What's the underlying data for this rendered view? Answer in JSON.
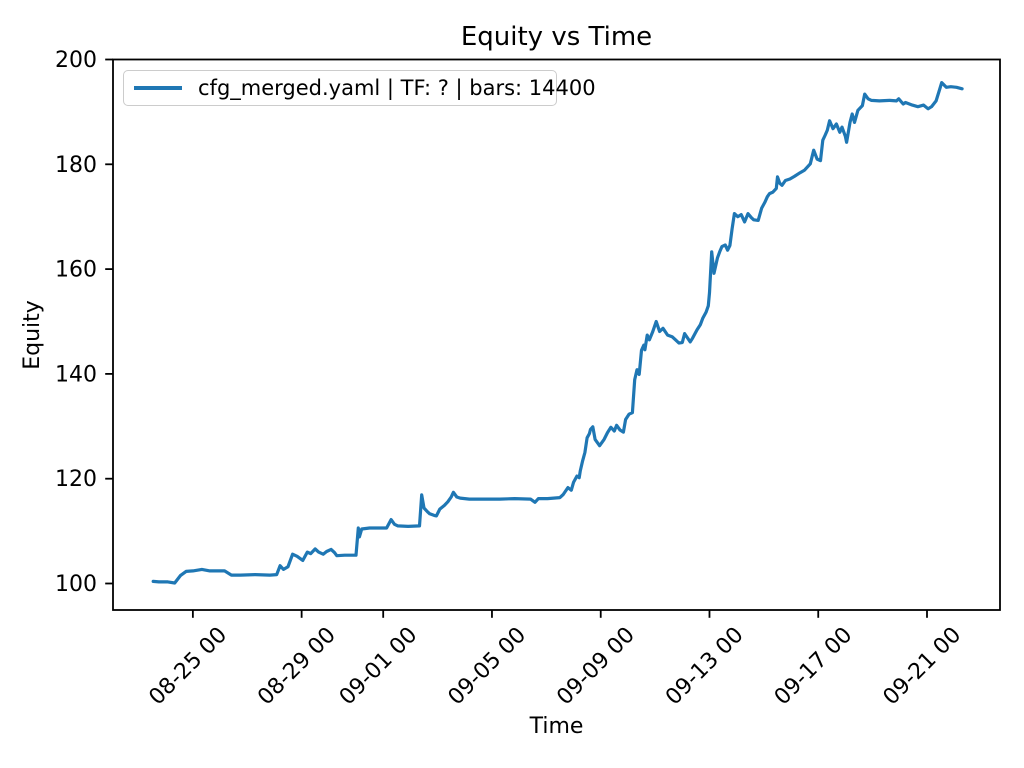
{
  "chart_data": {
    "type": "line",
    "title": "Equity vs Time",
    "xlabel": "Time",
    "ylabel": "Equity",
    "grid": false,
    "y_ticks": [
      100,
      120,
      140,
      160,
      180,
      200
    ],
    "y_tick_labels": [
      "100",
      "120",
      "140",
      "160",
      "180",
      "200"
    ],
    "x_tick_labels": [
      "08-25 00",
      "08-29 00",
      "09-01 00",
      "09-05 00",
      "09-09 00",
      "09-13 00",
      "09-17 00",
      "09-21 00"
    ],
    "ylim": [
      94.9,
      200
    ],
    "xlim": [
      "08-22 02",
      "09-23 17"
    ],
    "legend": {
      "position": "upper-left",
      "entries": [
        {
          "label": "cfg_merged.yaml | TF: ? | bars: 14400",
          "color": "#1f77b4"
        }
      ]
    },
    "series": [
      {
        "name": "cfg_merged.yaml | TF: ? | bars: 14400",
        "color": "#1f77b4",
        "points": [
          [
            "08-23 13",
            100.4
          ],
          [
            "08-23 18",
            100.3
          ],
          [
            "08-24 02",
            100.3
          ],
          [
            "08-24 08",
            100.1
          ],
          [
            "08-24 13",
            101.5
          ],
          [
            "08-24 18",
            102.3
          ],
          [
            "08-25 00",
            102.4
          ],
          [
            "08-25 08",
            102.7
          ],
          [
            "08-25 15",
            102.4
          ],
          [
            "08-26 04",
            102.4
          ],
          [
            "08-26 10",
            101.6
          ],
          [
            "08-26 18",
            101.6
          ],
          [
            "08-27 07",
            101.7
          ],
          [
            "08-27 20",
            101.6
          ],
          [
            "08-28 02",
            101.7
          ],
          [
            "08-28 05",
            103.4
          ],
          [
            "08-28 08",
            102.7
          ],
          [
            "08-28 12",
            103.2
          ],
          [
            "08-28 16",
            105.6
          ],
          [
            "08-28 20",
            105.2
          ],
          [
            "08-29 01",
            104.4
          ],
          [
            "08-29 05",
            106.0
          ],
          [
            "08-29 08",
            105.7
          ],
          [
            "08-29 12",
            106.6
          ],
          [
            "08-29 15",
            106.0
          ],
          [
            "08-29 19",
            105.6
          ],
          [
            "08-29 22",
            106.1
          ],
          [
            "08-30 02",
            106.5
          ],
          [
            "08-30 05",
            105.9
          ],
          [
            "08-30 07",
            105.3
          ],
          [
            "08-30 14",
            105.4
          ],
          [
            "08-31 00",
            105.4
          ],
          [
            "08-31 02",
            110.6
          ],
          [
            "08-31 03",
            108.9
          ],
          [
            "08-31 05",
            110.4
          ],
          [
            "08-31 12",
            110.6
          ],
          [
            "08-31 21",
            110.6
          ],
          [
            "09-01 03",
            110.6
          ],
          [
            "09-01 07",
            112.2
          ],
          [
            "09-01 10",
            111.3
          ],
          [
            "09-01 13",
            111.0
          ],
          [
            "09-01 22",
            110.9
          ],
          [
            "09-02 08",
            111.0
          ],
          [
            "09-02 10",
            116.9
          ],
          [
            "09-02 12",
            114.4
          ],
          [
            "09-02 15",
            113.7
          ],
          [
            "09-02 17",
            113.3
          ],
          [
            "09-02 21",
            113.0
          ],
          [
            "09-02 23",
            112.9
          ],
          [
            "09-03 02",
            114.2
          ],
          [
            "09-03 06",
            114.9
          ],
          [
            "09-03 09",
            115.6
          ],
          [
            "09-03 12",
            116.5
          ],
          [
            "09-03 14",
            117.4
          ],
          [
            "09-03 17",
            116.5
          ],
          [
            "09-03 20",
            116.3
          ],
          [
            "09-04 04",
            116.1
          ],
          [
            "09-04 18",
            116.1
          ],
          [
            "09-05 07",
            116.1
          ],
          [
            "09-05 20",
            116.2
          ],
          [
            "09-06 10",
            116.1
          ],
          [
            "09-06 14",
            115.5
          ],
          [
            "09-06 17",
            116.2
          ],
          [
            "09-07 01",
            116.2
          ],
          [
            "09-07 12",
            116.4
          ],
          [
            "09-07 15",
            117.0
          ],
          [
            "09-07 19",
            118.3
          ],
          [
            "09-07 22",
            117.8
          ],
          [
            "09-08 00",
            119.3
          ],
          [
            "09-08 03",
            120.5
          ],
          [
            "09-08 05",
            120.2
          ],
          [
            "09-08 06",
            121.5
          ],
          [
            "09-08 08",
            123.4
          ],
          [
            "09-08 10",
            125.0
          ],
          [
            "09-08 12",
            127.8
          ],
          [
            "09-08 14",
            128.6
          ],
          [
            "09-08 15",
            129.4
          ],
          [
            "09-08 17",
            129.9
          ],
          [
            "09-08 19",
            127.5
          ],
          [
            "09-08 23",
            126.3
          ],
          [
            "09-09 03",
            127.5
          ],
          [
            "09-09 06",
            128.8
          ],
          [
            "09-09 09",
            129.8
          ],
          [
            "09-09 12",
            129.1
          ],
          [
            "09-09 14",
            130.2
          ],
          [
            "09-09 17",
            129.3
          ],
          [
            "09-09 20",
            128.9
          ],
          [
            "09-09 22",
            131.3
          ],
          [
            "09-10 01",
            132.3
          ],
          [
            "09-10 04",
            132.6
          ],
          [
            "09-10 06",
            138.9
          ],
          [
            "09-10 08",
            140.8
          ],
          [
            "09-10 10",
            139.9
          ],
          [
            "09-10 12",
            144.5
          ],
          [
            "09-10 14",
            145.5
          ],
          [
            "09-10 15",
            144.6
          ],
          [
            "09-10 17",
            147.4
          ],
          [
            "09-10 19",
            146.5
          ],
          [
            "09-10 22",
            148.1
          ],
          [
            "09-11 01",
            150.0
          ],
          [
            "09-11 04",
            148.1
          ],
          [
            "09-11 07",
            148.7
          ],
          [
            "09-11 11",
            147.4
          ],
          [
            "09-11 15",
            147.1
          ],
          [
            "09-11 18",
            146.5
          ],
          [
            "09-11 21",
            145.9
          ],
          [
            "09-12 00",
            146.0
          ],
          [
            "09-12 02",
            147.7
          ],
          [
            "09-12 07",
            146.1
          ],
          [
            "09-12 09",
            146.8
          ],
          [
            "09-12 13",
            148.4
          ],
          [
            "09-12 16",
            149.4
          ],
          [
            "09-12 18",
            150.6
          ],
          [
            "09-12 21",
            151.8
          ],
          [
            "09-12 23",
            153.0
          ],
          [
            "09-13 00",
            155.5
          ],
          [
            "09-13 02",
            163.3
          ],
          [
            "09-13 04",
            159.2
          ],
          [
            "09-13 07",
            162.1
          ],
          [
            "09-13 09",
            163.3
          ],
          [
            "09-13 11",
            164.3
          ],
          [
            "09-13 14",
            164.6
          ],
          [
            "09-13 16",
            163.6
          ],
          [
            "09-13 18",
            164.5
          ],
          [
            "09-13 20",
            167.7
          ],
          [
            "09-13 22",
            170.6
          ],
          [
            "09-14 01",
            170.0
          ],
          [
            "09-14 04",
            170.4
          ],
          [
            "09-14 07",
            169.0
          ],
          [
            "09-14 10",
            170.6
          ],
          [
            "09-14 13",
            169.8
          ],
          [
            "09-14 15",
            169.4
          ],
          [
            "09-14 19",
            169.3
          ],
          [
            "09-14 22",
            171.6
          ],
          [
            "09-15 01",
            172.8
          ],
          [
            "09-15 03",
            173.8
          ],
          [
            "09-15 05",
            174.4
          ],
          [
            "09-15 08",
            174.7
          ],
          [
            "09-15 11",
            175.4
          ],
          [
            "09-15 12",
            177.6
          ],
          [
            "09-15 14",
            176.4
          ],
          [
            "09-15 16",
            176.0
          ],
          [
            "09-15 19",
            176.9
          ],
          [
            "09-15 23",
            177.2
          ],
          [
            "09-16 03",
            177.7
          ],
          [
            "09-16 08",
            178.4
          ],
          [
            "09-16 12",
            178.9
          ],
          [
            "09-16 17",
            180.1
          ],
          [
            "09-16 20",
            182.7
          ],
          [
            "09-16 23",
            181.0
          ],
          [
            "09-17 02",
            180.7
          ],
          [
            "09-17 04",
            184.6
          ],
          [
            "09-17 06",
            185.5
          ],
          [
            "09-17 08",
            186.5
          ],
          [
            "09-17 10",
            188.3
          ],
          [
            "09-17 13",
            186.8
          ],
          [
            "09-17 16",
            187.7
          ],
          [
            "09-17 19",
            186.1
          ],
          [
            "09-17 21",
            187.1
          ],
          [
            "09-18 00",
            185.3
          ],
          [
            "09-18 01",
            184.2
          ],
          [
            "09-18 04",
            188.0
          ],
          [
            "09-18 06",
            189.6
          ],
          [
            "09-18 08",
            188.0
          ],
          [
            "09-18 11",
            190.3
          ],
          [
            "09-18 15",
            191.2
          ],
          [
            "09-18 17",
            193.4
          ],
          [
            "09-18 20",
            192.5
          ],
          [
            "09-18 23",
            192.2
          ],
          [
            "09-19 06",
            192.1
          ],
          [
            "09-19 15",
            192.2
          ],
          [
            "09-19 21",
            192.1
          ],
          [
            "09-19 23",
            192.5
          ],
          [
            "09-20 03",
            191.5
          ],
          [
            "09-20 05",
            191.8
          ],
          [
            "09-20 11",
            191.3
          ],
          [
            "09-20 16",
            191.0
          ],
          [
            "09-20 21",
            191.3
          ],
          [
            "09-21 01",
            190.6
          ],
          [
            "09-21 04",
            191.0
          ],
          [
            "09-21 08",
            192.1
          ],
          [
            "09-21 11",
            194.2
          ],
          [
            "09-21 13",
            195.6
          ],
          [
            "09-21 17",
            194.7
          ],
          [
            "09-21 21",
            194.8
          ],
          [
            "09-22 02",
            194.7
          ],
          [
            "09-22 07",
            194.4
          ]
        ]
      }
    ]
  },
  "colors": {
    "line": "#1f77b4",
    "axis": "#000000",
    "legend_border": "#cccccc",
    "background": "#ffffff"
  }
}
